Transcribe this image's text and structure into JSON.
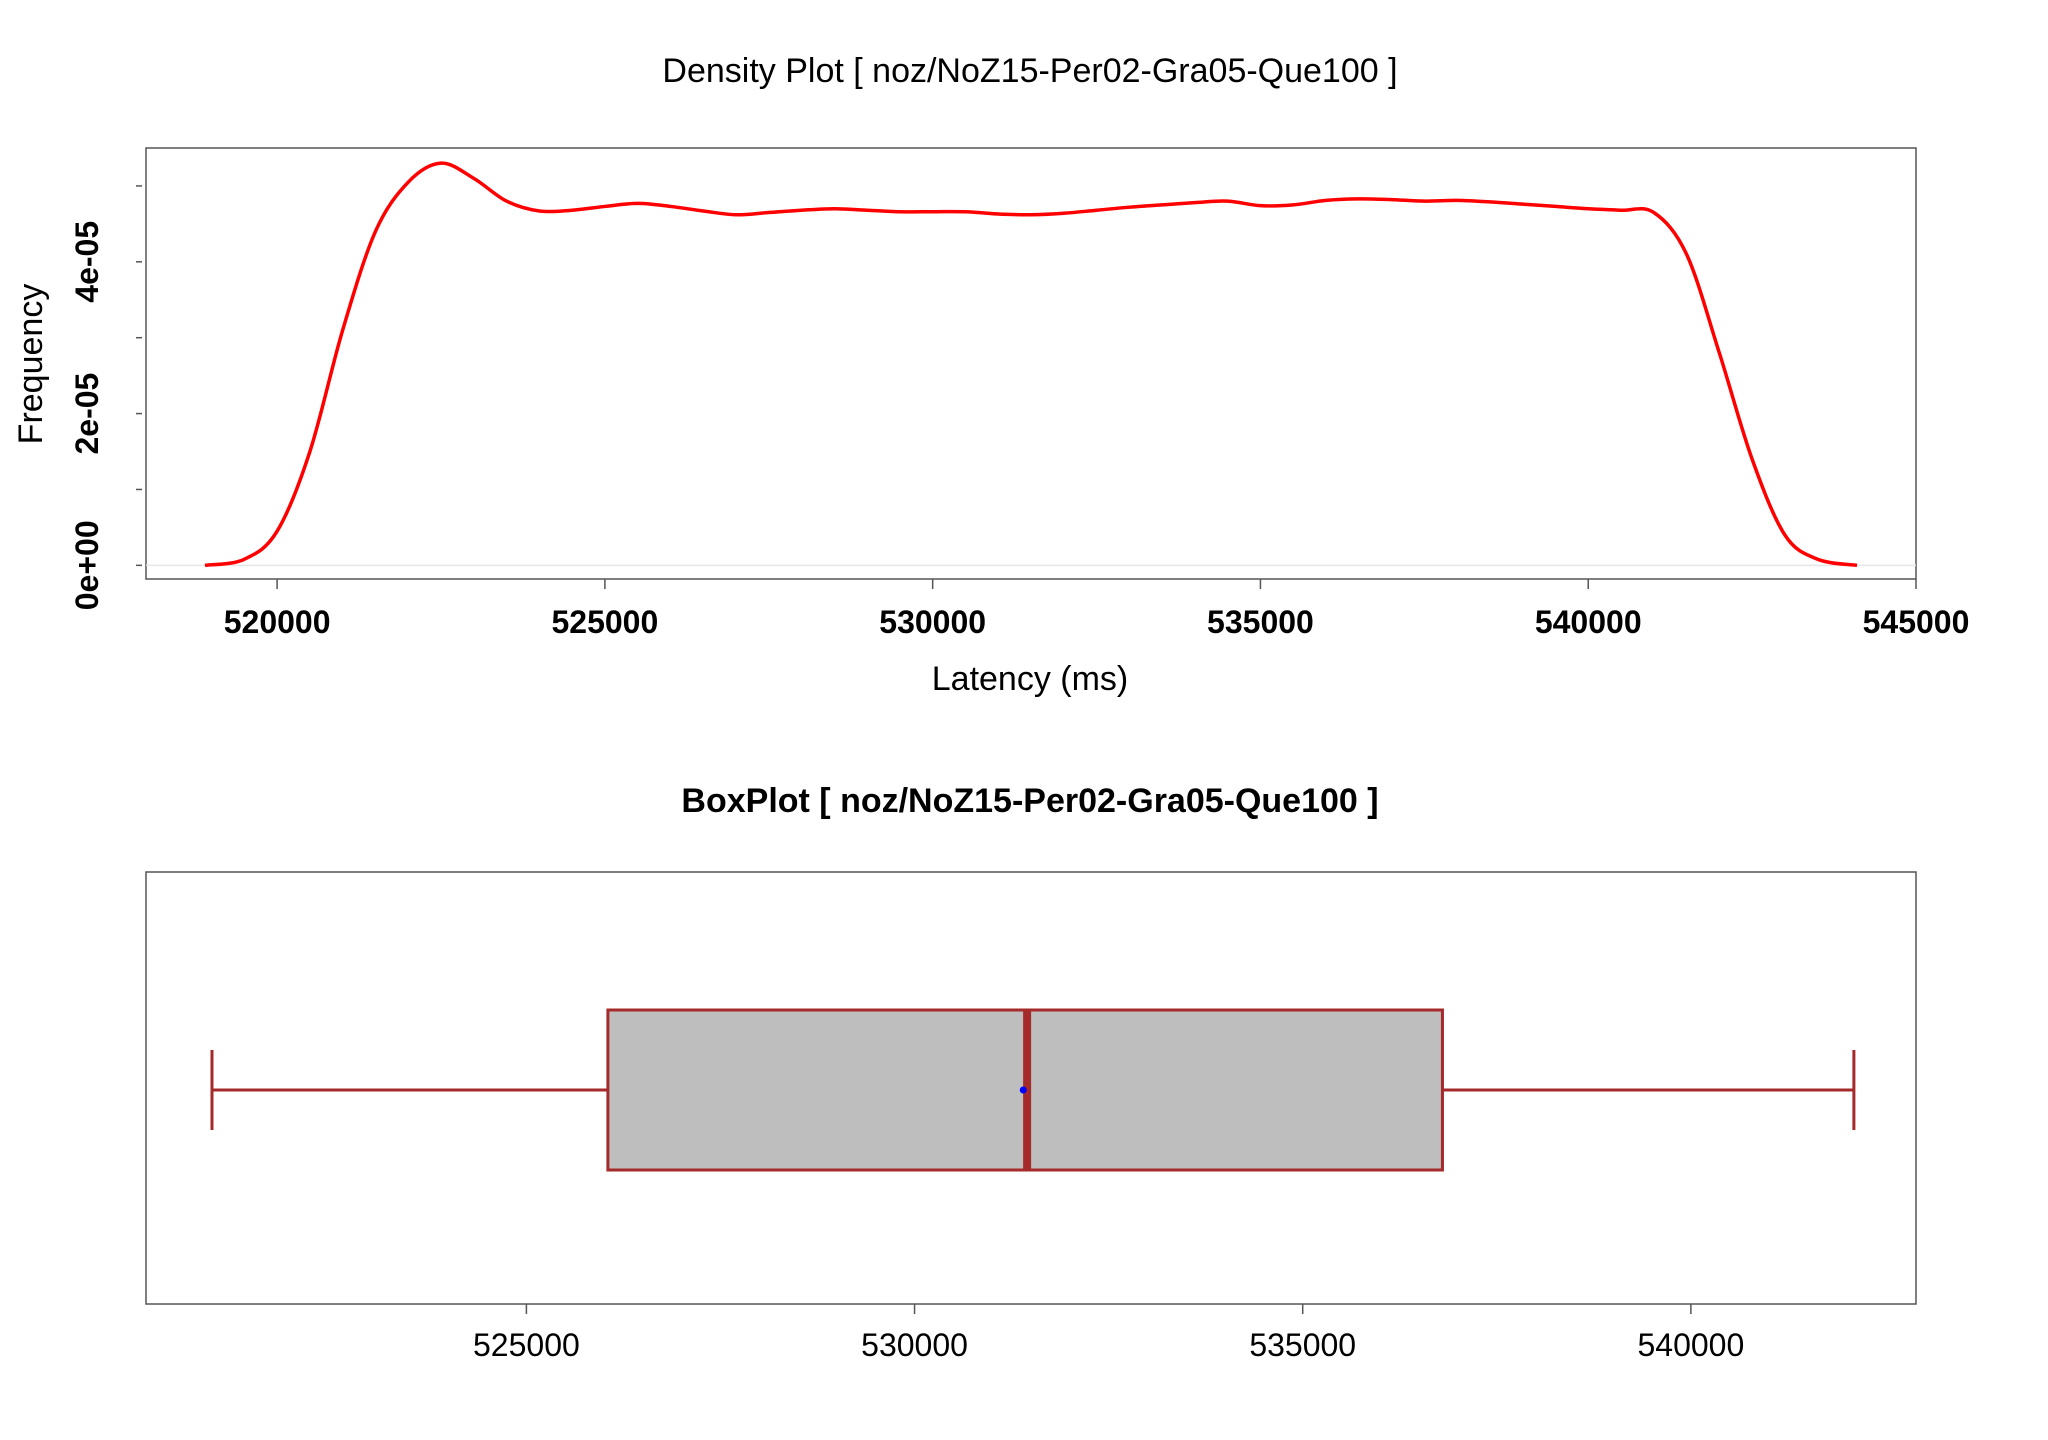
{
  "chart_data": [
    {
      "type": "line",
      "title": "Density Plot [ noz/NoZ15-Per02-Gra05-Que100 ]",
      "xlabel": "Latency (ms)",
      "ylabel": "Frequency",
      "xlim": [
        518000,
        545000
      ],
      "ylim": [
        -1.8e-06,
        5.5e-05
      ],
      "xticks": [
        520000,
        525000,
        530000,
        535000,
        540000,
        545000
      ],
      "xtick_labels": [
        "520000",
        "525000",
        "530000",
        "535000",
        "540000",
        "545000"
      ],
      "yticks": [
        0,
        2e-05,
        4e-05
      ],
      "ytick_labels": [
        "0e+00",
        "2e-05",
        "4e-05"
      ],
      "yminor_ticks": [
        1e-05,
        3e-05,
        5e-05
      ],
      "grid": false,
      "series": [
        {
          "color": "#ff0000",
          "x": [
            518900,
            519500,
            520000,
            520500,
            521000,
            521500,
            522000,
            522500,
            523000,
            523500,
            524000,
            524500,
            525000,
            525500,
            526000,
            526500,
            527000,
            527500,
            528000,
            528500,
            529000,
            529500,
            530000,
            530500,
            531000,
            531500,
            532000,
            532500,
            533000,
            533500,
            534000,
            534500,
            535000,
            535500,
            536000,
            536500,
            537000,
            537500,
            538000,
            538500,
            539000,
            539500,
            540000,
            540500,
            541000,
            541500,
            542000,
            542500,
            543000,
            543500,
            544100
          ],
          "y": [
            0.0,
            8e-07,
            4.5e-06,
            1.5e-05,
            3.1e-05,
            4.4e-05,
            5.05e-05,
            5.3e-05,
            5.1e-05,
            4.8e-05,
            4.67e-05,
            4.68e-05,
            4.73e-05,
            4.77e-05,
            4.73e-05,
            4.67e-05,
            4.62e-05,
            4.65e-05,
            4.68e-05,
            4.7e-05,
            4.68e-05,
            4.66e-05,
            4.66e-05,
            4.66e-05,
            4.63e-05,
            4.62e-05,
            4.64e-05,
            4.68e-05,
            4.72e-05,
            4.75e-05,
            4.78e-05,
            4.8e-05,
            4.74e-05,
            4.75e-05,
            4.81e-05,
            4.83e-05,
            4.82e-05,
            4.8e-05,
            4.81e-05,
            4.79e-05,
            4.76e-05,
            4.73e-05,
            4.7e-05,
            4.68e-05,
            4.65e-05,
            4.1e-05,
            2.8e-05,
            1.4e-05,
            4e-06,
            8e-07,
            0.0
          ]
        }
      ]
    },
    {
      "type": "box",
      "title": "BoxPlot [ noz/NoZ15-Per02-Gra05-Que100 ]",
      "xlim": [
        520100,
        542900
      ],
      "xticks": [
        525000,
        530000,
        535000,
        540000
      ],
      "xtick_labels": [
        "525000",
        "530000",
        "535000",
        "540000"
      ],
      "box": {
        "whisker_low": 520950,
        "q1": 526050,
        "median": 531450,
        "q3": 536800,
        "whisker_high": 542100,
        "mean": 531400
      },
      "colors": {
        "box_fill": "#bebebe",
        "box_stroke": "#a52a2a",
        "mean_point": "#0000ff"
      }
    }
  ]
}
